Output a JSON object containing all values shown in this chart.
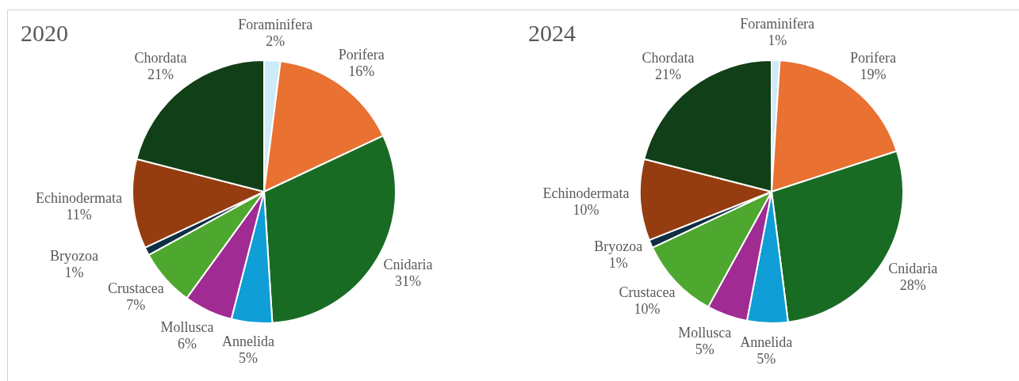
{
  "chart_data": [
    {
      "type": "pie",
      "title": "2020",
      "categories": [
        "Foraminifera",
        "Porifera",
        "Cnidaria",
        "Annelida",
        "Mollusca",
        "Crustacea",
        "Bryozoa",
        "Echinodermata",
        "Chordata"
      ],
      "values": [
        2,
        16,
        31,
        5,
        6,
        7,
        1,
        11,
        21
      ],
      "value_labels": [
        "2%",
        "16%",
        "31%",
        "5%",
        "6%",
        "7%",
        "1%",
        "11%",
        "21%"
      ],
      "colors": [
        "#cdebf8",
        "#e97132",
        "#196b24",
        "#0f9ed5",
        "#a02b93",
        "#4ea72e",
        "#0e2f44",
        "#953d10",
        "#113f17"
      ]
    },
    {
      "type": "pie",
      "title": "2024",
      "categories": [
        "Foraminifera",
        "Porifera",
        "Cnidaria",
        "Annelida",
        "Mollusca",
        "Crustacea",
        "Bryozoa",
        "Echinodermata",
        "Chordata"
      ],
      "values": [
        1,
        19,
        28,
        5,
        5,
        10,
        1,
        10,
        21
      ],
      "value_labels": [
        "1%",
        "19%",
        "28%",
        "5%",
        "5%",
        "10%",
        "1%",
        "10%",
        "21%"
      ],
      "colors": [
        "#cdebf8",
        "#e97132",
        "#196b24",
        "#0f9ed5",
        "#a02b93",
        "#4ea72e",
        "#0e2f44",
        "#953d10",
        "#113f17"
      ]
    }
  ]
}
